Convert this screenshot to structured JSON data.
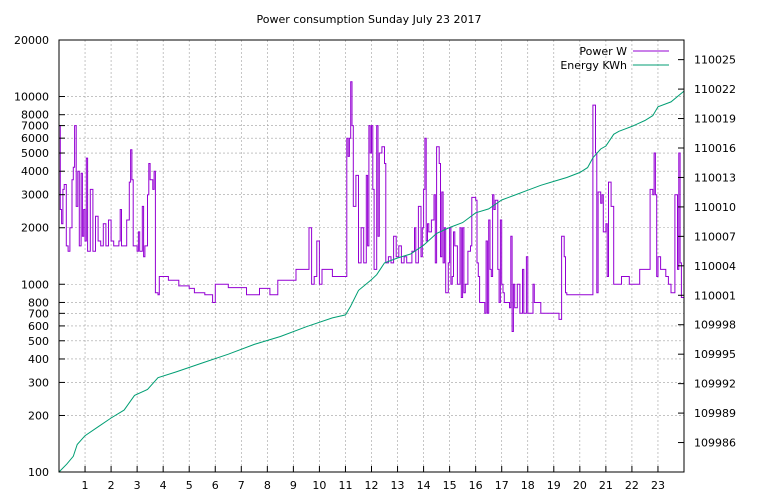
{
  "chart_data": {
    "type": "line",
    "title": "Power consumption Sunday July 23 2017",
    "x_ticks": [
      "1",
      "2",
      "3",
      "4",
      "5",
      "6",
      "7",
      "8",
      "9",
      "10",
      "11",
      "12",
      "13",
      "14",
      "15",
      "16",
      "17",
      "18",
      "19",
      "20",
      "21",
      "22",
      "23"
    ],
    "xlim": [
      0,
      24
    ],
    "y_left": {
      "scale": "log",
      "lim": [
        100,
        20000
      ],
      "ticks": [
        "100",
        "200",
        "300",
        "400",
        "500",
        "600",
        "700",
        "800",
        "1000",
        "2000",
        "3000",
        "4000",
        "5000",
        "6000",
        "7000",
        "8000",
        "10000",
        "20000"
      ]
    },
    "y_right": {
      "scale": "linear",
      "lim": [
        109983,
        110027
      ],
      "ticks": [
        "109986",
        "109989",
        "109992",
        "109995",
        "109998",
        "110001",
        "110004",
        "110007",
        "110010",
        "110013",
        "110016",
        "110019",
        "110022",
        "110025"
      ]
    },
    "grid": true,
    "legend_position": "top-right",
    "series": [
      {
        "name": "Power W",
        "color": "#9400d3",
        "axis": "left",
        "points": [
          [
            0.0,
            7000
          ],
          [
            0.05,
            2500
          ],
          [
            0.1,
            2100
          ],
          [
            0.15,
            3200
          ],
          [
            0.2,
            3400
          ],
          [
            0.28,
            1600
          ],
          [
            0.35,
            1500
          ],
          [
            0.42,
            2000
          ],
          [
            0.5,
            3600
          ],
          [
            0.55,
            4200
          ],
          [
            0.6,
            7000
          ],
          [
            0.66,
            2600
          ],
          [
            0.72,
            4000
          ],
          [
            0.78,
            1600
          ],
          [
            0.85,
            3900
          ],
          [
            0.9,
            1800
          ],
          [
            0.95,
            2500
          ],
          [
            1.0,
            1700
          ],
          [
            1.05,
            4700
          ],
          [
            1.1,
            1500
          ],
          [
            1.2,
            3200
          ],
          [
            1.3,
            1500
          ],
          [
            1.4,
            2300
          ],
          [
            1.5,
            1700
          ],
          [
            1.6,
            1600
          ],
          [
            1.7,
            2100
          ],
          [
            1.8,
            1600
          ],
          [
            1.9,
            2200
          ],
          [
            2.0,
            1700
          ],
          [
            2.1,
            1600
          ],
          [
            2.2,
            1600
          ],
          [
            2.3,
            1700
          ],
          [
            2.35,
            2500
          ],
          [
            2.4,
            1600
          ],
          [
            2.5,
            1600
          ],
          [
            2.6,
            2200
          ],
          [
            2.7,
            3500
          ],
          [
            2.75,
            5200
          ],
          [
            2.8,
            3600
          ],
          [
            2.85,
            1600
          ],
          [
            3.0,
            1500
          ],
          [
            3.05,
            1900
          ],
          [
            3.1,
            1500
          ],
          [
            3.2,
            2600
          ],
          [
            3.25,
            1400
          ],
          [
            3.3,
            1600
          ],
          [
            3.4,
            3000
          ],
          [
            3.45,
            4400
          ],
          [
            3.5,
            3600
          ],
          [
            3.6,
            3200
          ],
          [
            3.65,
            4000
          ],
          [
            3.7,
            900
          ],
          [
            3.8,
            880
          ],
          [
            3.85,
            1100
          ],
          [
            4.0,
            1100
          ],
          [
            4.2,
            1050
          ],
          [
            4.5,
            1050
          ],
          [
            4.6,
            980
          ],
          [
            5.0,
            950
          ],
          [
            5.2,
            900
          ],
          [
            5.5,
            900
          ],
          [
            5.6,
            880
          ],
          [
            5.8,
            880
          ],
          [
            5.9,
            800
          ],
          [
            6.0,
            1000
          ],
          [
            6.3,
            1000
          ],
          [
            6.5,
            960
          ],
          [
            7.0,
            960
          ],
          [
            7.2,
            880
          ],
          [
            7.6,
            880
          ],
          [
            7.7,
            950
          ],
          [
            8.0,
            950
          ],
          [
            8.1,
            880
          ],
          [
            8.3,
            880
          ],
          [
            8.4,
            1050
          ],
          [
            9.0,
            1050
          ],
          [
            9.1,
            1200
          ],
          [
            9.5,
            1200
          ],
          [
            9.6,
            2000
          ],
          [
            9.7,
            1000
          ],
          [
            9.8,
            1100
          ],
          [
            9.9,
            1700
          ],
          [
            10.0,
            1000
          ],
          [
            10.1,
            1200
          ],
          [
            10.3,
            1200
          ],
          [
            10.5,
            1100
          ],
          [
            11.0,
            1100
          ],
          [
            11.05,
            6000
          ],
          [
            11.1,
            4800
          ],
          [
            11.15,
            6000
          ],
          [
            11.2,
            12000
          ],
          [
            11.25,
            7000
          ],
          [
            11.3,
            2600
          ],
          [
            11.4,
            3800
          ],
          [
            11.5,
            1300
          ],
          [
            11.6,
            2000
          ],
          [
            11.7,
            1300
          ],
          [
            11.8,
            3800
          ],
          [
            11.85,
            1600
          ],
          [
            11.9,
            7000
          ],
          [
            11.95,
            5000
          ],
          [
            12.0,
            7000
          ],
          [
            12.05,
            3200
          ],
          [
            12.1,
            1200
          ],
          [
            12.2,
            7000
          ],
          [
            12.25,
            1800
          ],
          [
            12.3,
            5000
          ],
          [
            12.4,
            5400
          ],
          [
            12.5,
            4400
          ],
          [
            12.55,
            1300
          ],
          [
            12.65,
            1400
          ],
          [
            12.75,
            1300
          ],
          [
            12.85,
            1800
          ],
          [
            12.95,
            1400
          ],
          [
            13.05,
            1600
          ],
          [
            13.15,
            1300
          ],
          [
            13.25,
            1400
          ],
          [
            13.35,
            1300
          ],
          [
            13.45,
            1300
          ],
          [
            13.55,
            1500
          ],
          [
            13.65,
            2000
          ],
          [
            13.7,
            1300
          ],
          [
            13.8,
            2600
          ],
          [
            13.9,
            1400
          ],
          [
            13.95,
            2000
          ],
          [
            14.0,
            3200
          ],
          [
            14.05,
            6000
          ],
          [
            14.1,
            1700
          ],
          [
            14.15,
            2100
          ],
          [
            14.2,
            1900
          ],
          [
            14.3,
            2200
          ],
          [
            14.4,
            3000
          ],
          [
            14.45,
            1300
          ],
          [
            14.5,
            5400
          ],
          [
            14.6,
            4400
          ],
          [
            14.65,
            1400
          ],
          [
            14.7,
            3100
          ],
          [
            14.75,
            1300
          ],
          [
            14.8,
            2000
          ],
          [
            14.85,
            900
          ],
          [
            14.95,
            1300
          ],
          [
            15.0,
            2000
          ],
          [
            15.05,
            1000
          ],
          [
            15.1,
            1100
          ],
          [
            15.15,
            1900
          ],
          [
            15.2,
            1600
          ],
          [
            15.3,
            1000
          ],
          [
            15.4,
            2000
          ],
          [
            15.45,
            850
          ],
          [
            15.5,
            2000
          ],
          [
            15.55,
            900
          ],
          [
            15.6,
            1000
          ],
          [
            15.7,
            1500
          ],
          [
            15.8,
            1600
          ],
          [
            15.85,
            2900
          ],
          [
            16.0,
            2800
          ],
          [
            16.05,
            1300
          ],
          [
            16.1,
            1100
          ],
          [
            16.15,
            800
          ],
          [
            16.3,
            800
          ],
          [
            16.35,
            700
          ],
          [
            16.4,
            1700
          ],
          [
            16.45,
            700
          ],
          [
            16.5,
            2200
          ],
          [
            16.55,
            1200
          ],
          [
            16.6,
            1100
          ],
          [
            16.65,
            3000
          ],
          [
            16.7,
            2500
          ],
          [
            16.75,
            2800
          ],
          [
            16.8,
            2800
          ],
          [
            16.85,
            1200
          ],
          [
            16.9,
            800
          ],
          [
            16.95,
            2200
          ],
          [
            17.0,
            1000
          ],
          [
            17.05,
            900
          ],
          [
            17.1,
            800
          ],
          [
            17.2,
            800
          ],
          [
            17.3,
            750
          ],
          [
            17.35,
            1800
          ],
          [
            17.4,
            560
          ],
          [
            17.45,
            1000
          ],
          [
            17.5,
            750
          ],
          [
            17.6,
            1000
          ],
          [
            17.7,
            700
          ],
          [
            17.8,
            1200
          ],
          [
            17.85,
            700
          ],
          [
            17.95,
            1400
          ],
          [
            18.0,
            700
          ],
          [
            18.1,
            700
          ],
          [
            18.2,
            1000
          ],
          [
            18.25,
            800
          ],
          [
            18.4,
            800
          ],
          [
            18.5,
            700
          ],
          [
            18.8,
            700
          ],
          [
            19.0,
            700
          ],
          [
            19.2,
            650
          ],
          [
            19.3,
            1800
          ],
          [
            19.4,
            1400
          ],
          [
            19.45,
            900
          ],
          [
            19.5,
            880
          ],
          [
            19.8,
            880
          ],
          [
            20.3,
            880
          ],
          [
            20.4,
            880
          ],
          [
            20.5,
            9000
          ],
          [
            20.6,
            5000
          ],
          [
            20.65,
            900
          ],
          [
            20.7,
            3100
          ],
          [
            20.8,
            2700
          ],
          [
            20.85,
            3000
          ],
          [
            20.9,
            1900
          ],
          [
            21.0,
            2100
          ],
          [
            21.05,
            1100
          ],
          [
            21.1,
            3500
          ],
          [
            21.2,
            2600
          ],
          [
            21.3,
            1000
          ],
          [
            21.4,
            1000
          ],
          [
            21.6,
            1100
          ],
          [
            21.8,
            1100
          ],
          [
            21.9,
            1000
          ],
          [
            22.2,
            1000
          ],
          [
            22.3,
            1200
          ],
          [
            22.5,
            1200
          ],
          [
            22.6,
            1200
          ],
          [
            22.7,
            3200
          ],
          [
            22.8,
            3000
          ],
          [
            22.85,
            5000
          ],
          [
            22.9,
            3000
          ],
          [
            22.95,
            1100
          ],
          [
            23.0,
            1400
          ],
          [
            23.1,
            1200
          ],
          [
            23.2,
            1200
          ],
          [
            23.3,
            1100
          ],
          [
            23.4,
            1000
          ],
          [
            23.5,
            900
          ],
          [
            23.6,
            900
          ],
          [
            23.65,
            3000
          ],
          [
            23.75,
            1200
          ],
          [
            23.8,
            5000
          ],
          [
            23.85,
            1300
          ],
          [
            23.9,
            850
          ],
          [
            24.0,
            850
          ]
        ]
      },
      {
        "name": "Energy KWh",
        "color": "#009e73",
        "axis": "right",
        "points": [
          [
            0.0,
            109983.0
          ],
          [
            0.3,
            109983.8
          ],
          [
            0.55,
            109984.6
          ],
          [
            0.7,
            109985.8
          ],
          [
            1.0,
            109986.7
          ],
          [
            1.5,
            109987.6
          ],
          [
            2.0,
            109988.5
          ],
          [
            2.5,
            109989.3
          ],
          [
            2.9,
            109990.8
          ],
          [
            3.4,
            109991.4
          ],
          [
            3.8,
            109992.6
          ],
          [
            4.5,
            109993.2
          ],
          [
            5.5,
            109994.1
          ],
          [
            6.5,
            109995.0
          ],
          [
            7.5,
            109996.0
          ],
          [
            8.5,
            109996.8
          ],
          [
            9.5,
            109997.8
          ],
          [
            10.5,
            109998.7
          ],
          [
            11.0,
            109999.0
          ],
          [
            11.2,
            109999.9
          ],
          [
            11.5,
            110001.5
          ],
          [
            12.0,
            110002.6
          ],
          [
            12.2,
            110003.1
          ],
          [
            12.5,
            110004.3
          ],
          [
            13.0,
            110004.8
          ],
          [
            13.5,
            110005.2
          ],
          [
            14.0,
            110006.1
          ],
          [
            14.5,
            110007.3
          ],
          [
            15.0,
            110007.9
          ],
          [
            15.5,
            110008.4
          ],
          [
            16.0,
            110009.4
          ],
          [
            16.5,
            110009.8
          ],
          [
            17.0,
            110010.7
          ],
          [
            17.5,
            110011.2
          ],
          [
            18.0,
            110011.7
          ],
          [
            18.5,
            110012.2
          ],
          [
            19.0,
            110012.6
          ],
          [
            19.5,
            110013.0
          ],
          [
            20.0,
            110013.5
          ],
          [
            20.3,
            110014.0
          ],
          [
            20.5,
            110015.0
          ],
          [
            20.8,
            110015.9
          ],
          [
            21.0,
            110016.2
          ],
          [
            21.3,
            110017.4
          ],
          [
            21.5,
            110017.7
          ],
          [
            22.0,
            110018.2
          ],
          [
            22.5,
            110018.8
          ],
          [
            22.8,
            110019.3
          ],
          [
            23.0,
            110020.2
          ],
          [
            23.5,
            110020.7
          ],
          [
            24.0,
            110021.8
          ]
        ]
      }
    ]
  }
}
